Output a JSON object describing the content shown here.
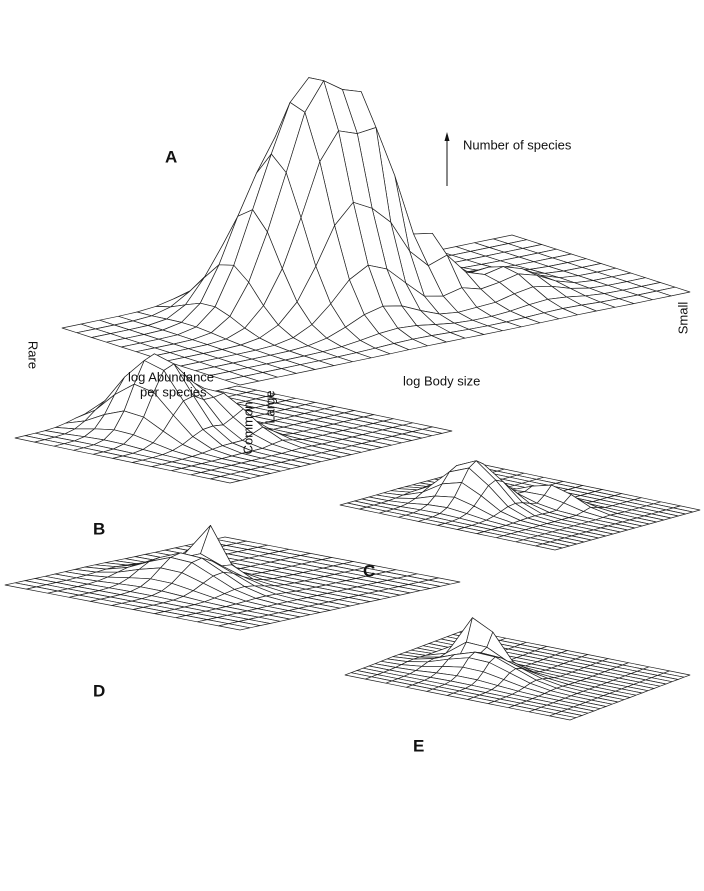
{
  "panels": [
    {
      "label": "A"
    },
    {
      "label": "B"
    },
    {
      "label": "C"
    },
    {
      "label": "D"
    },
    {
      "label": "E"
    }
  ],
  "axes": {
    "z": "Number of species",
    "abundance": {
      "low": "Rare",
      "high": "Common",
      "title": [
        "log Abundance",
        "per species"
      ]
    },
    "body_size": {
      "low": "Large",
      "high": "Small",
      "title": "log Body size"
    }
  }
}
